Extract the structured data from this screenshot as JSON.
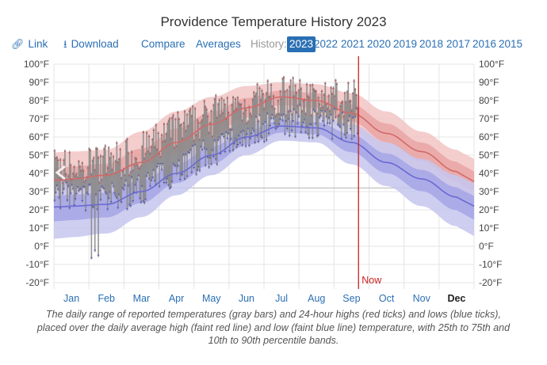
{
  "title": "Providence Temperature History 2023",
  "toolbar": {
    "link_label": "Link",
    "download_label": "Download",
    "compare_label": "Compare",
    "averages_label": "Averages",
    "history_label": "History:",
    "years": [
      "2023",
      "2022",
      "2021",
      "2020",
      "2019",
      "2018",
      "2017",
      "2016",
      "2015"
    ],
    "active_year": "2023"
  },
  "icons": {
    "link": "link-icon",
    "download": "download-icon",
    "scroll_left": "chevron-left-icon"
  },
  "colors": {
    "accent": "#2a6fb3",
    "now_line": "#cc2222",
    "high_line": "#d06a6a",
    "low_line": "#6a6ad0",
    "bars": "#888888"
  },
  "chart_data": {
    "type": "area",
    "x_axis": {
      "tick_labels": [
        "Jan",
        "Feb",
        "Mar",
        "Apr",
        "May",
        "Jun",
        "Jul",
        "Aug",
        "Sep",
        "Oct",
        "Nov",
        "Dec"
      ],
      "bold_label": "Dec"
    },
    "y_axis": {
      "tick_labels": [
        "100°F",
        "90°F",
        "80°F",
        "70°F",
        "60°F",
        "50°F",
        "40°F",
        "30°F",
        "20°F",
        "10°F",
        "0°F",
        "-10°F",
        "-20°F"
      ],
      "ylim": [
        -20,
        100
      ],
      "unit": "°F"
    },
    "marker": {
      "label": "Now",
      "month": 8.7
    },
    "freezing_line": 32,
    "months": [
      0.5,
      1.5,
      2.5,
      3.5,
      4.5,
      5.5,
      6.5,
      7.5,
      8.5,
      9.5,
      10.5,
      11.5
    ],
    "avg_high": [
      37,
      39,
      46,
      57,
      67,
      76,
      82,
      80,
      73,
      62,
      52,
      41
    ],
    "avg_low": [
      22,
      23,
      30,
      40,
      50,
      60,
      66,
      65,
      57,
      46,
      37,
      27
    ],
    "high_p10": [
      25,
      27,
      32,
      43,
      54,
      64,
      72,
      71,
      63,
      51,
      40,
      29
    ],
    "high_p90": [
      52,
      53,
      63,
      74,
      82,
      88,
      90,
      89,
      84,
      74,
      63,
      53
    ],
    "low_p10": [
      5,
      7,
      16,
      28,
      39,
      50,
      58,
      57,
      45,
      33,
      22,
      11
    ],
    "low_p90": [
      36,
      37,
      44,
      51,
      60,
      68,
      73,
      72,
      67,
      57,
      48,
      39
    ],
    "daily_sample": {
      "note_from_image": "daily range of reported temperatures (gray bars) Jan–Aug 2023",
      "monthly_high": [
        44,
        46,
        52,
        64,
        72,
        78,
        83,
        82
      ],
      "monthly_low": [
        28,
        24,
        31,
        42,
        51,
        61,
        69,
        67
      ]
    }
  },
  "caption": "The daily range of reported temperatures (gray bars) and 24-hour highs (red ticks) and lows (blue ticks), placed over the daily average high (faint red line) and low (faint blue line) temperature, with 25th to 75th and 10th to 90th percentile bands."
}
